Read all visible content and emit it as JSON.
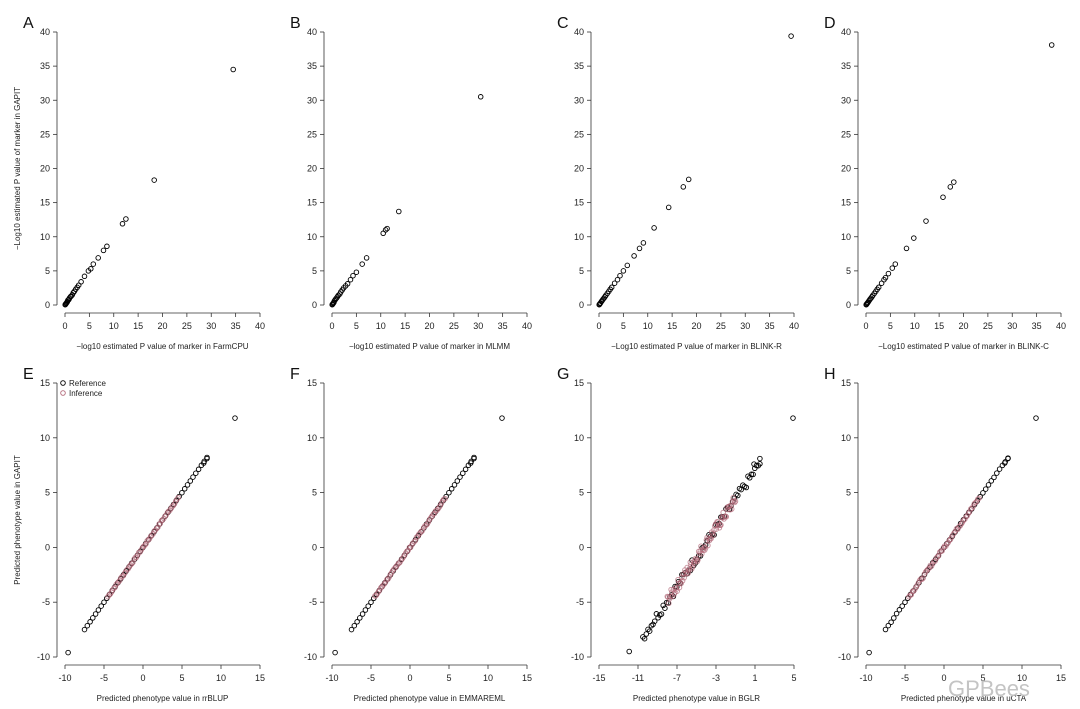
{
  "chart_data": [
    {
      "panel": "A",
      "type": "scatter",
      "xlabel": "−log10 estimated P value of marker in FarmCPU",
      "ylabel": "−Log10 estimated P value of marker in GAPIT",
      "xlim": [
        0,
        40
      ],
      "ylim": [
        0,
        40
      ],
      "xticks": [
        "0",
        "5",
        "10",
        "15",
        "20",
        "25",
        "30",
        "35",
        "40"
      ],
      "yticks": [
        "0",
        "5",
        "10",
        "15",
        "20",
        "25",
        "30",
        "35",
        "40"
      ],
      "series": [
        {
          "color": "#000000",
          "points": [
            [
              34.5,
              34.5
            ],
            [
              18.3,
              18.3
            ],
            [
              12.5,
              12.6
            ],
            [
              11.8,
              11.9
            ],
            [
              8.6,
              8.6
            ],
            [
              7.9,
              8.0
            ],
            [
              6.8,
              6.9
            ],
            [
              5.8,
              6.0
            ],
            [
              5.3,
              5.3
            ],
            [
              4.8,
              5.0
            ],
            [
              4.0,
              4.2
            ],
            [
              3.3,
              3.4
            ],
            [
              2.8,
              2.9
            ],
            [
              2.5,
              2.6
            ],
            [
              2.2,
              2.3
            ],
            [
              1.9,
              2.0
            ],
            [
              1.7,
              1.8
            ],
            [
              1.5,
              1.5
            ],
            [
              1.3,
              1.3
            ],
            [
              1.1,
              1.2
            ],
            [
              0.9,
              1.0
            ],
            [
              0.8,
              0.8
            ],
            [
              0.6,
              0.7
            ],
            [
              0.5,
              0.5
            ],
            [
              0.4,
              0.4
            ],
            [
              0.3,
              0.3
            ],
            [
              0.2,
              0.2
            ],
            [
              0.1,
              0.1
            ],
            [
              0.05,
              0.05
            ]
          ]
        }
      ]
    },
    {
      "panel": "B",
      "type": "scatter",
      "xlabel": "−log10 estimated P value of marker in MLMM",
      "ylabel": "",
      "xlim": [
        0,
        40
      ],
      "ylim": [
        0,
        40
      ],
      "xticks": [
        "0",
        "5",
        "10",
        "15",
        "20",
        "25",
        "30",
        "35",
        "40"
      ],
      "yticks": [
        "0",
        "5",
        "10",
        "15",
        "20",
        "25",
        "30",
        "35",
        "40"
      ],
      "series": [
        {
          "color": "#000000",
          "points": [
            [
              30.5,
              30.5
            ],
            [
              13.7,
              13.7
            ],
            [
              11.3,
              11.2
            ],
            [
              11.0,
              11.0
            ],
            [
              10.5,
              10.5
            ],
            [
              7.1,
              6.9
            ],
            [
              6.2,
              6.0
            ],
            [
              5.0,
              4.8
            ],
            [
              4.3,
              4.3
            ],
            [
              3.8,
              3.7
            ],
            [
              3.2,
              3.1
            ],
            [
              2.8,
              2.8
            ],
            [
              2.4,
              2.5
            ],
            [
              2.1,
              2.2
            ],
            [
              1.8,
              1.9
            ],
            [
              1.6,
              1.6
            ],
            [
              1.3,
              1.4
            ],
            [
              1.1,
              1.2
            ],
            [
              0.9,
              1.0
            ],
            [
              0.7,
              0.8
            ],
            [
              0.5,
              0.6
            ],
            [
              0.4,
              0.4
            ],
            [
              0.3,
              0.3
            ],
            [
              0.2,
              0.2
            ],
            [
              0.1,
              0.1
            ],
            [
              0.05,
              0.05
            ]
          ]
        }
      ]
    },
    {
      "panel": "C",
      "type": "scatter",
      "xlabel": "−Log10 estimated P value of marker in BLINK-R",
      "ylabel": "",
      "xlim": [
        0,
        40
      ],
      "ylim": [
        0,
        40
      ],
      "xticks": [
        "0",
        "5",
        "10",
        "15",
        "20",
        "25",
        "30",
        "35",
        "40"
      ],
      "yticks": [
        "0",
        "5",
        "10",
        "15",
        "20",
        "25",
        "30",
        "35",
        "40"
      ],
      "series": [
        {
          "color": "#000000",
          "points": [
            [
              39.4,
              39.4
            ],
            [
              18.4,
              18.4
            ],
            [
              17.3,
              17.3
            ],
            [
              14.3,
              14.3
            ],
            [
              11.3,
              11.3
            ],
            [
              9.1,
              9.1
            ],
            [
              8.3,
              8.3
            ],
            [
              7.2,
              7.2
            ],
            [
              5.8,
              5.8
            ],
            [
              5.0,
              5.0
            ],
            [
              4.3,
              4.3
            ],
            [
              3.8,
              3.7
            ],
            [
              3.2,
              3.2
            ],
            [
              2.6,
              2.6
            ],
            [
              2.3,
              2.3
            ],
            [
              2.0,
              2.0
            ],
            [
              1.7,
              1.7
            ],
            [
              1.4,
              1.4
            ],
            [
              1.2,
              1.2
            ],
            [
              1.0,
              1.0
            ],
            [
              0.8,
              0.8
            ],
            [
              0.6,
              0.6
            ],
            [
              0.5,
              0.5
            ],
            [
              0.3,
              0.3
            ],
            [
              0.2,
              0.2
            ],
            [
              0.1,
              0.1
            ],
            [
              0.05,
              0.05
            ]
          ]
        }
      ]
    },
    {
      "panel": "D",
      "type": "scatter",
      "xlabel": "−Log10 estimated P value of marker in BLINK-C",
      "ylabel": "",
      "xlim": [
        0,
        40
      ],
      "ylim": [
        0,
        40
      ],
      "xticks": [
        "0",
        "5",
        "10",
        "15",
        "20",
        "25",
        "30",
        "35",
        "40"
      ],
      "yticks": [
        "0",
        "5",
        "10",
        "15",
        "20",
        "25",
        "30",
        "35",
        "40"
      ],
      "series": [
        {
          "color": "#000000",
          "points": [
            [
              38.1,
              38.1
            ],
            [
              18.0,
              18.0
            ],
            [
              17.3,
              17.3
            ],
            [
              15.8,
              15.8
            ],
            [
              12.3,
              12.3
            ],
            [
              9.8,
              9.8
            ],
            [
              8.3,
              8.3
            ],
            [
              6.0,
              6.0
            ],
            [
              5.4,
              5.4
            ],
            [
              4.6,
              4.6
            ],
            [
              4.0,
              4.0
            ],
            [
              3.7,
              3.7
            ],
            [
              3.2,
              3.2
            ],
            [
              2.6,
              2.6
            ],
            [
              2.3,
              2.3
            ],
            [
              2.0,
              2.0
            ],
            [
              1.7,
              1.7
            ],
            [
              1.4,
              1.4
            ],
            [
              1.2,
              1.2
            ],
            [
              1.0,
              1.0
            ],
            [
              0.8,
              0.8
            ],
            [
              0.6,
              0.6
            ],
            [
              0.4,
              0.4
            ],
            [
              0.3,
              0.3
            ],
            [
              0.2,
              0.2
            ],
            [
              0.1,
              0.1
            ],
            [
              0.05,
              0.05
            ]
          ]
        }
      ]
    },
    {
      "panel": "E",
      "type": "scatter",
      "xlabel": "Predicted phenotype value in rrBLUP",
      "ylabel": "Predicted phenotype value in GAPIT",
      "xlim": [
        -10,
        15
      ],
      "ylim": [
        -10,
        15
      ],
      "xticks": [
        "-10",
        "-5",
        "0",
        "5",
        "10",
        "15"
      ],
      "yticks": [
        "-10",
        "-5",
        "0",
        "5",
        "10",
        "15"
      ],
      "legend": {
        "position": "top-left",
        "entries": [
          "Reference",
          "Inference"
        ]
      },
      "series": [
        {
          "name": "Reference",
          "color": "#000000",
          "line": {
            "x0": -7.5,
            "x1": 8.2,
            "slope": 1,
            "intercept": 0,
            "n": 45,
            "jitter": 0
          },
          "points": [
            [
              -9.6,
              -9.6
            ],
            [
              11.8,
              11.8
            ],
            [
              8.2,
              8.1
            ],
            [
              7.8,
              7.7
            ]
          ]
        },
        {
          "name": "Inference",
          "color": "#b36a7a",
          "line": {
            "x0": -4.5,
            "x1": 4.5,
            "slope": 1,
            "intercept": 0,
            "n": 60,
            "jitter": 0.08
          },
          "points": []
        }
      ]
    },
    {
      "panel": "F",
      "type": "scatter",
      "xlabel": "Predicted phenotype value in EMMAREML",
      "ylabel": "",
      "xlim": [
        -10,
        15
      ],
      "ylim": [
        -10,
        15
      ],
      "xticks": [
        "-10",
        "-5",
        "0",
        "5",
        "10",
        "15"
      ],
      "yticks": [
        "-10",
        "-5",
        "0",
        "5",
        "10",
        "15"
      ],
      "series": [
        {
          "name": "Reference",
          "color": "#000000",
          "line": {
            "x0": -7.5,
            "x1": 8.2,
            "slope": 1,
            "intercept": 0,
            "n": 45,
            "jitter": 0
          },
          "points": [
            [
              -9.6,
              -9.6
            ],
            [
              11.8,
              11.8
            ],
            [
              8.2,
              8.1
            ],
            [
              7.8,
              7.7
            ]
          ]
        },
        {
          "name": "Inference",
          "color": "#b36a7a",
          "line": {
            "x0": -4.5,
            "x1": 4.5,
            "slope": 1,
            "intercept": 0,
            "n": 60,
            "jitter": 0.08
          },
          "points": []
        }
      ]
    },
    {
      "panel": "G",
      "type": "scatter",
      "xlabel": "Predicted phenotype value in BGLR",
      "ylabel": "",
      "xlim": [
        -15,
        5
      ],
      "ylim": [
        -10,
        15
      ],
      "xticks": [
        "-15",
        "-11",
        "-7",
        "-3",
        "1",
        "5"
      ],
      "yticks": [
        "-10",
        "-5",
        "0",
        "5",
        "10",
        "15"
      ],
      "series": [
        {
          "name": "Reference",
          "color": "#000000",
          "line": {
            "x0": -10.5,
            "x1": 1.5,
            "slope": 1.32,
            "intercept": 5.7,
            "n": 70,
            "jitter": 0.45
          },
          "points": [
            [
              -11.9,
              -9.5
            ],
            [
              4.9,
              11.8
            ],
            [
              1.5,
              8.1
            ],
            [
              0.9,
              7.6
            ]
          ]
        },
        {
          "name": "Inference",
          "color": "#b36a7a",
          "line": {
            "x0": -8,
            "x1": -1,
            "slope": 1.32,
            "intercept": 5.7,
            "n": 90,
            "jitter": 0.5
          },
          "points": []
        }
      ]
    },
    {
      "panel": "H",
      "type": "scatter",
      "xlabel": "Predicted phenotype value in uCTA",
      "ylabel": "",
      "xlim": [
        -10,
        15
      ],
      "ylim": [
        -10,
        15
      ],
      "xticks": [
        "-10",
        "-5",
        "0",
        "5",
        "10",
        "15"
      ],
      "yticks": [
        "-10",
        "-5",
        "0",
        "5",
        "10",
        "15"
      ],
      "series": [
        {
          "name": "Reference",
          "color": "#000000",
          "line": {
            "x0": -7.5,
            "x1": 8.2,
            "slope": 1,
            "intercept": 0,
            "n": 45,
            "jitter": 0.05
          },
          "points": [
            [
              -9.6,
              -9.6
            ],
            [
              11.8,
              11.8
            ],
            [
              8.2,
              8.1
            ],
            [
              7.8,
              7.7
            ]
          ]
        },
        {
          "name": "Inference",
          "color": "#b36a7a",
          "line": {
            "x0": -4.5,
            "x1": 4.5,
            "slope": 1,
            "intercept": 0,
            "n": 60,
            "jitter": 0.12
          },
          "points": []
        }
      ]
    }
  ],
  "watermark": "GPBees"
}
